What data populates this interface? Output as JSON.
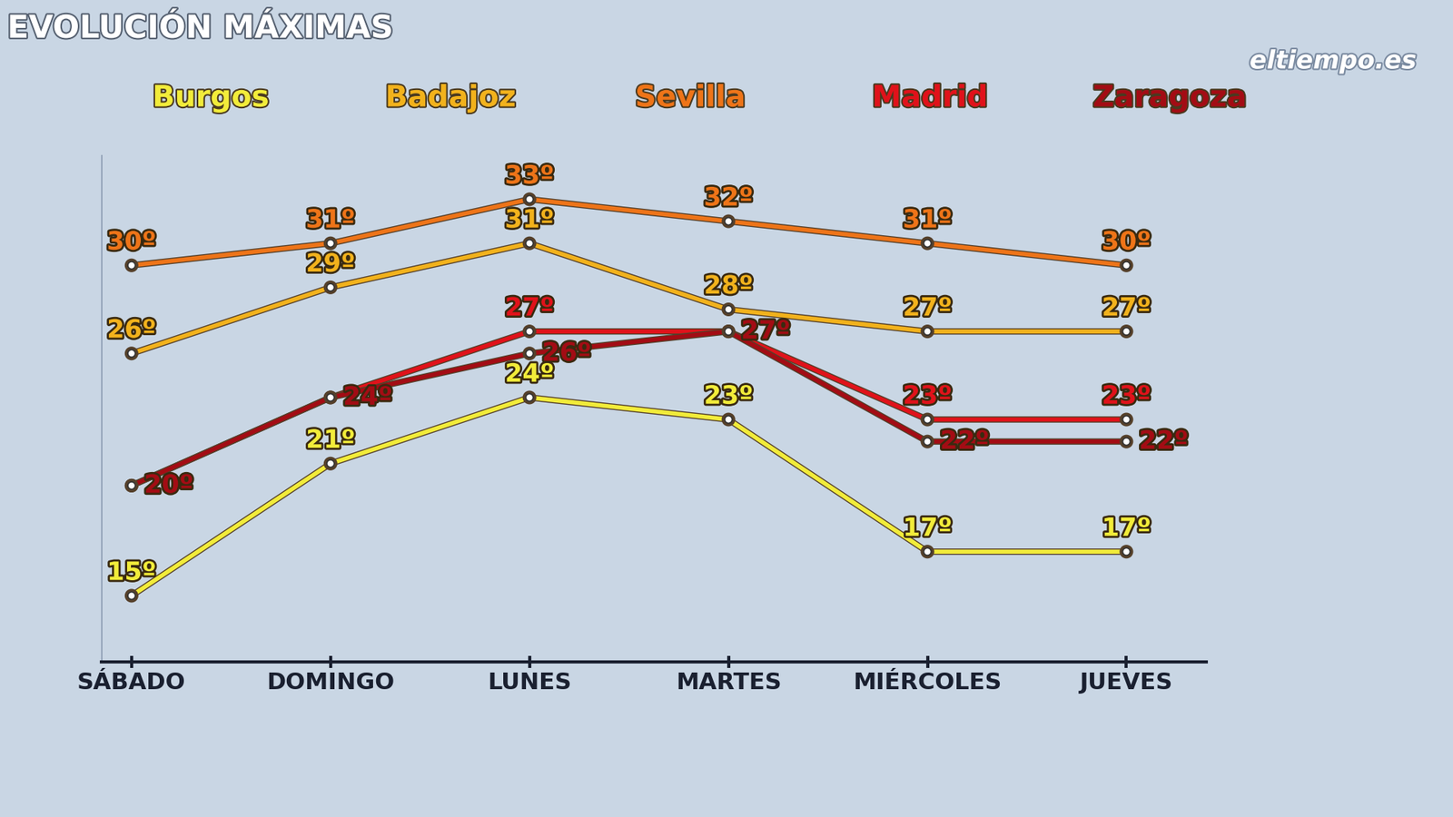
{
  "chart_data": {
    "type": "line",
    "title": "EVOLUCIÓN MÁXIMAS",
    "annotations": [
      "eltiempo.es"
    ],
    "categories": [
      "SÁBADO",
      "DOMINGO",
      "LUNES",
      "MARTES",
      "MIÉRCOLES",
      "JUEVES"
    ],
    "ylim": [
      12,
      35
    ],
    "yticks": [],
    "tick_labels": "x",
    "grid": false,
    "data_labels": true,
    "marker": "o",
    "series": [
      {
        "name": "Burgos",
        "color": "#f2ec3a",
        "values": [
          15,
          21,
          24,
          23,
          17,
          17
        ],
        "value_labels": [
          "15º",
          "21º",
          "24º",
          "23º",
          "17º",
          "17º"
        ]
      },
      {
        "name": "Badajoz",
        "color": "#f2b21c",
        "values": [
          26,
          29,
          31,
          28,
          27,
          27
        ],
        "value_labels": [
          "26º",
          "29º",
          "31º",
          "28º",
          "27º",
          "27º"
        ]
      },
      {
        "name": "Sevilla",
        "color": "#ee7418",
        "values": [
          30,
          31,
          33,
          32,
          31,
          30
        ],
        "value_labels": [
          "30º",
          "31º",
          "33º",
          "32º",
          "31º",
          "30º"
        ]
      },
      {
        "name": "Madrid",
        "color": "#e0121a",
        "values": [
          20,
          24,
          27,
          27,
          23,
          23
        ],
        "value_labels": [
          null,
          null,
          "27º",
          null,
          "23º",
          "23º"
        ]
      },
      {
        "name": "Zaragoza",
        "color": "#a30c14",
        "values": [
          20,
          24,
          26,
          27,
          22,
          22
        ],
        "value_labels": [
          "20º",
          "24º",
          "26º",
          "27º",
          "22º",
          "22º"
        ]
      }
    ]
  }
}
